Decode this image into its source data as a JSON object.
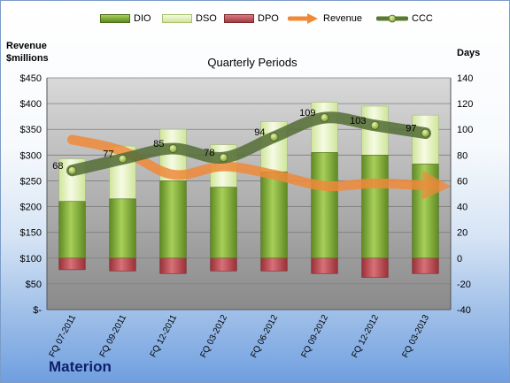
{
  "chart_data": {
    "type": "bar",
    "title": "Quarterly Periods",
    "company": "Materion",
    "y_left_label_line1": "Revenue",
    "y_left_label_line2": "$millions",
    "y_right_label": "Days",
    "ylim_left": [
      0,
      450
    ],
    "ylim_right": [
      -40,
      140
    ],
    "yticks_left": [
      "$-",
      "$50",
      "$100",
      "$150",
      "$200",
      "$250",
      "$300",
      "$350",
      "$400",
      "$450"
    ],
    "yticks_right": [
      "-40",
      "-20",
      "0",
      "20",
      "40",
      "60",
      "80",
      "100",
      "120",
      "140"
    ],
    "categories": [
      "FQ 07-2011",
      "FQ 09-2011",
      "FQ 12-2011",
      "FQ 03-2012",
      "FQ 06-2012",
      "FQ 09-2012",
      "FQ 12-2012",
      "FQ 03-2013"
    ],
    "series": [
      {
        "name": "DIO",
        "axis": "right",
        "values": [
          44,
          46,
          60,
          55,
          67,
          82,
          80,
          73
        ],
        "color": "#7aa83a"
      },
      {
        "name": "DSO",
        "axis": "right",
        "values": [
          33,
          41,
          40,
          33,
          39,
          39,
          38,
          38
        ],
        "color": "#eaf4c8"
      },
      {
        "name": "DPO",
        "axis": "right",
        "values": [
          -9,
          -10,
          -12,
          -10,
          -10,
          -12,
          -15,
          -12
        ],
        "color": "#b84850"
      },
      {
        "name": "Revenue",
        "axis": "left",
        "values": [
          330,
          308,
          262,
          278,
          262,
          240,
          245,
          240
        ],
        "color": "#ef8a3a"
      },
      {
        "name": "CCC",
        "axis": "right",
        "values": [
          68,
          77,
          85,
          78,
          94,
          109,
          103,
          97
        ],
        "labels": [
          "68",
          "77",
          "85",
          "78",
          "94",
          "109",
          "103",
          "97"
        ],
        "color": "#5a7a30"
      }
    ],
    "grid": true,
    "legend_position": "top"
  }
}
